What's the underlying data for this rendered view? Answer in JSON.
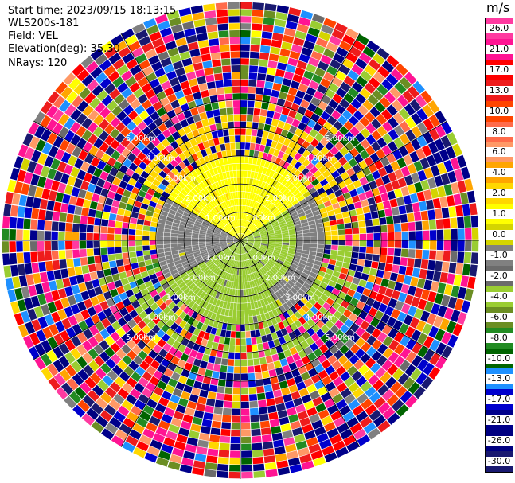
{
  "info": {
    "start_time": "Start time: 2023/09/15 18:13:15",
    "instrument": "WLS200s-181",
    "field": "Field: VEL",
    "elevation": "Elevation(deg): 35.30",
    "nrays": "NRays: 120"
  },
  "colorbar": {
    "unit": "m/s",
    "ticks": [
      "26.0",
      "21.0",
      "17.0",
      "13.0",
      "10.0",
      "8.0",
      "6.0",
      "4.0",
      "2.0",
      "1.0",
      "0.0",
      "-1.0",
      "-2.0",
      "-4.0",
      "-6.0",
      "-8.0",
      "-10.0",
      "-13.0",
      "-17.0",
      "-21.0",
      "-26.0",
      "-30.0"
    ],
    "colors": [
      "#ff3aa0",
      "#ff1493",
      "#ff0000",
      "#ee1c1c",
      "#ff4500",
      "#ff6b4a",
      "#ff9966",
      "#ffa500",
      "#ffd700",
      "#ffff00",
      "#d4d400",
      "#808080",
      "#6b6b6b",
      "#9acd32",
      "#6b8e23",
      "#228b22",
      "#006400",
      "#1e90ff",
      "#0000cd",
      "#00008b",
      "#000080",
      "#191970"
    ]
  },
  "chart_data": {
    "type": "heatmap",
    "projection": "polar PPI",
    "field": "VEL",
    "units": "m/s",
    "n_rays": 120,
    "elevation_deg": 35.3,
    "range_ring_labels": [
      "1.00km",
      "2.00km",
      "3.00km",
      "4.00km",
      "5.00km"
    ],
    "range_rings_km": [
      1,
      2,
      3,
      4,
      5
    ],
    "radial_spokes_deg": [
      0,
      30,
      60,
      90,
      120,
      150,
      180,
      210,
      240,
      270,
      300,
      330
    ],
    "color_scale": [
      -30,
      -26,
      -21,
      -17,
      -13,
      -10,
      -8,
      -6,
      -4,
      -2,
      -1,
      0,
      1,
      2,
      4,
      6,
      8,
      10,
      13,
      17,
      21,
      26
    ],
    "description_regions": [
      {
        "range_km": [
          0,
          1.6
        ],
        "sector_deg": [
          300,
          60
        ],
        "value_ms": 1.5
      },
      {
        "range_km": [
          0,
          1.6
        ],
        "sector_deg": [
          60,
          150
        ],
        "value_ms": -0.5
      },
      {
        "range_km": [
          0,
          1.6
        ],
        "sector_deg": [
          150,
          240
        ],
        "value_ms": -2.5
      },
      {
        "range_km": [
          0,
          1.6
        ],
        "sector_deg": [
          240,
          300
        ],
        "value_ms": -0.5
      }
    ]
  }
}
